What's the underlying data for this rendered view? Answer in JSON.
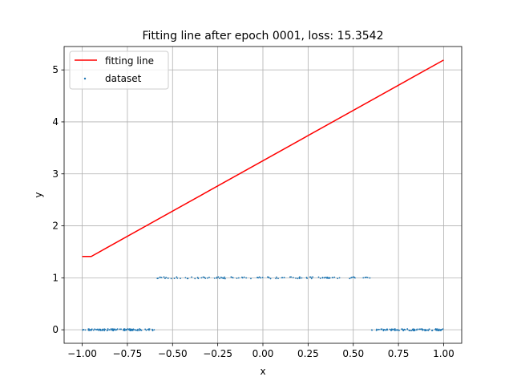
{
  "chart_data": {
    "type": "scatter",
    "title": "Fitting line after epoch 0001, loss: 15.3542",
    "xlabel": "x",
    "ylabel": "y",
    "xlim": [
      -1.1,
      1.1
    ],
    "ylim": [
      -0.26,
      5.45
    ],
    "xticks": [
      -1.0,
      -0.75,
      -0.5,
      -0.25,
      0.0,
      0.25,
      0.5,
      0.75,
      1.0
    ],
    "xtick_labels": [
      "−1.00",
      "−0.75",
      "−0.50",
      "−0.25",
      "0.00",
      "0.25",
      "0.50",
      "0.75",
      "1.00"
    ],
    "yticks": [
      0,
      1,
      2,
      3,
      4,
      5
    ],
    "ytick_labels": [
      "0",
      "1",
      "2",
      "3",
      "4",
      "5"
    ],
    "grid": true,
    "legend_position": "upper-left",
    "series": [
      {
        "name": "fitting line",
        "kind": "line",
        "color": "#ff0000",
        "x": [
          -1.0,
          -0.95,
          -0.94,
          1.0
        ],
        "y": [
          1.41,
          1.41,
          1.43,
          5.19
        ]
      },
      {
        "name": "dataset",
        "kind": "scatter",
        "color": "#1f77b4",
        "segments": [
          {
            "x_range": [
              -1.0,
              -0.6
            ],
            "y": 0.0
          },
          {
            "x_range": [
              -0.6,
              0.6
            ],
            "y": 1.0
          },
          {
            "x_range": [
              0.6,
              1.0
            ],
            "y": 0.0
          }
        ]
      }
    ]
  }
}
